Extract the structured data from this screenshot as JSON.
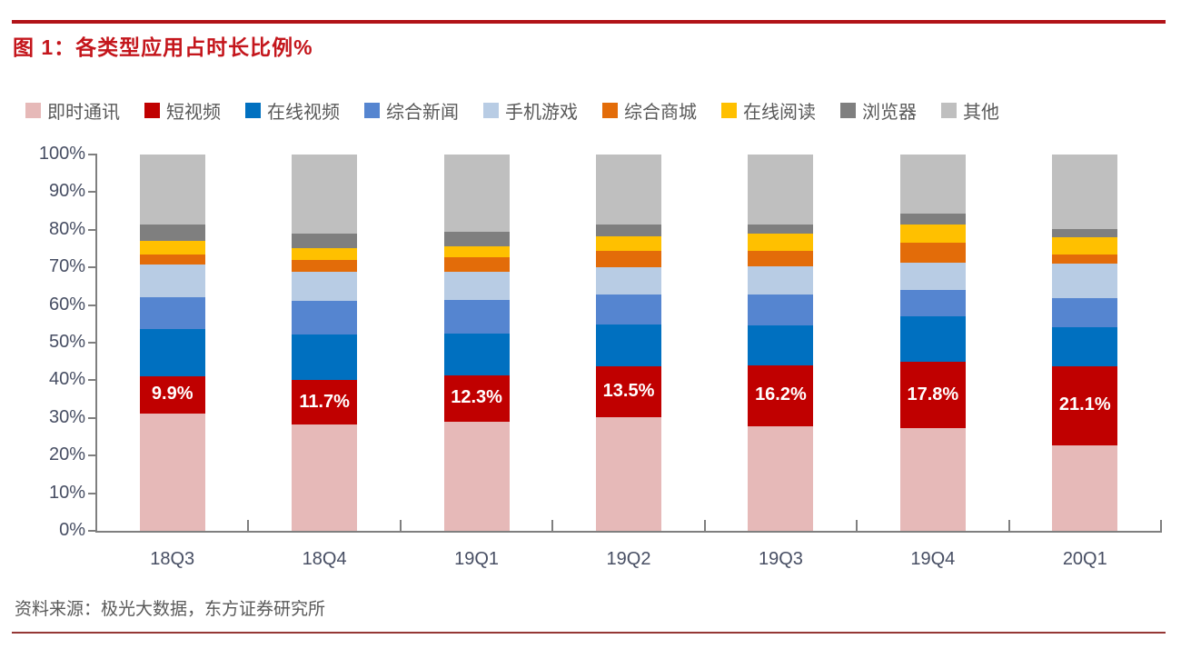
{
  "page": {
    "title": "图 1：各类型应用占时长比例%",
    "source": "资料来源：极光大数据，东方证券研究所"
  },
  "colors": {
    "top_rule": "#b11318",
    "bottom_rule": "#953735",
    "title": "#c4161c",
    "axis": "#7f7f7f",
    "axis_label": "#474e63",
    "legend_text": "#595959",
    "data_label": "#ffffff"
  },
  "chart_data": {
    "type": "bar",
    "stacked": true,
    "percent_stacked": true,
    "title": "各类型应用占时长比例%",
    "xlabel": "",
    "ylabel": "",
    "ylim": [
      0,
      100
    ],
    "grid": false,
    "legend_position": "top",
    "yticks": [
      "0%",
      "10%",
      "20%",
      "30%",
      "40%",
      "50%",
      "60%",
      "70%",
      "80%",
      "90%",
      "100%"
    ],
    "categories": [
      "18Q3",
      "18Q4",
      "19Q1",
      "19Q2",
      "19Q3",
      "19Q4",
      "20Q1"
    ],
    "series": [
      {
        "name": "即时通讯",
        "key": "instant-messaging",
        "color": "#e6b9b8",
        "values": [
          31.2,
          28.3,
          29.1,
          30.3,
          27.8,
          27.2,
          22.7
        ]
      },
      {
        "name": "短视频",
        "key": "short-video",
        "color": "#c00000",
        "values": [
          9.9,
          11.7,
          12.3,
          13.5,
          16.2,
          17.8,
          21.1
        ]
      },
      {
        "name": "在线视频",
        "key": "online-video",
        "color": "#0070c0",
        "values": [
          12.6,
          12.1,
          11.0,
          11.0,
          10.6,
          11.9,
          10.4
        ]
      },
      {
        "name": "综合新闻",
        "key": "news",
        "color": "#5585d0",
        "values": [
          8.3,
          8.9,
          8.9,
          8.0,
          8.2,
          7.0,
          7.6
        ]
      },
      {
        "name": "手机游戏",
        "key": "mobile-games",
        "color": "#b8cce4",
        "values": [
          8.7,
          7.9,
          7.6,
          7.2,
          7.5,
          7.4,
          9.3
        ]
      },
      {
        "name": "综合商城",
        "key": "shopping-mall",
        "color": "#e36c09",
        "values": [
          2.8,
          3.1,
          3.8,
          4.5,
          4.2,
          5.2,
          2.4
        ]
      },
      {
        "name": "在线阅读",
        "key": "online-reading",
        "color": "#ffc000",
        "values": [
          3.5,
          3.1,
          3.0,
          3.8,
          4.4,
          4.8,
          4.4
        ]
      },
      {
        "name": "浏览器",
        "key": "browser",
        "color": "#7f7f7f",
        "values": [
          4.4,
          3.9,
          3.7,
          3.2,
          2.5,
          2.9,
          2.4
        ]
      },
      {
        "name": "其他",
        "key": "other",
        "color": "#bfbfbf",
        "values": [
          18.6,
          21.0,
          20.6,
          18.5,
          18.6,
          15.8,
          19.7
        ]
      }
    ],
    "labeled_series": "短视频",
    "data_labels": [
      "9.9%",
      "11.7%",
      "12.3%",
      "13.5%",
      "16.2%",
      "17.8%",
      "21.1%"
    ]
  }
}
